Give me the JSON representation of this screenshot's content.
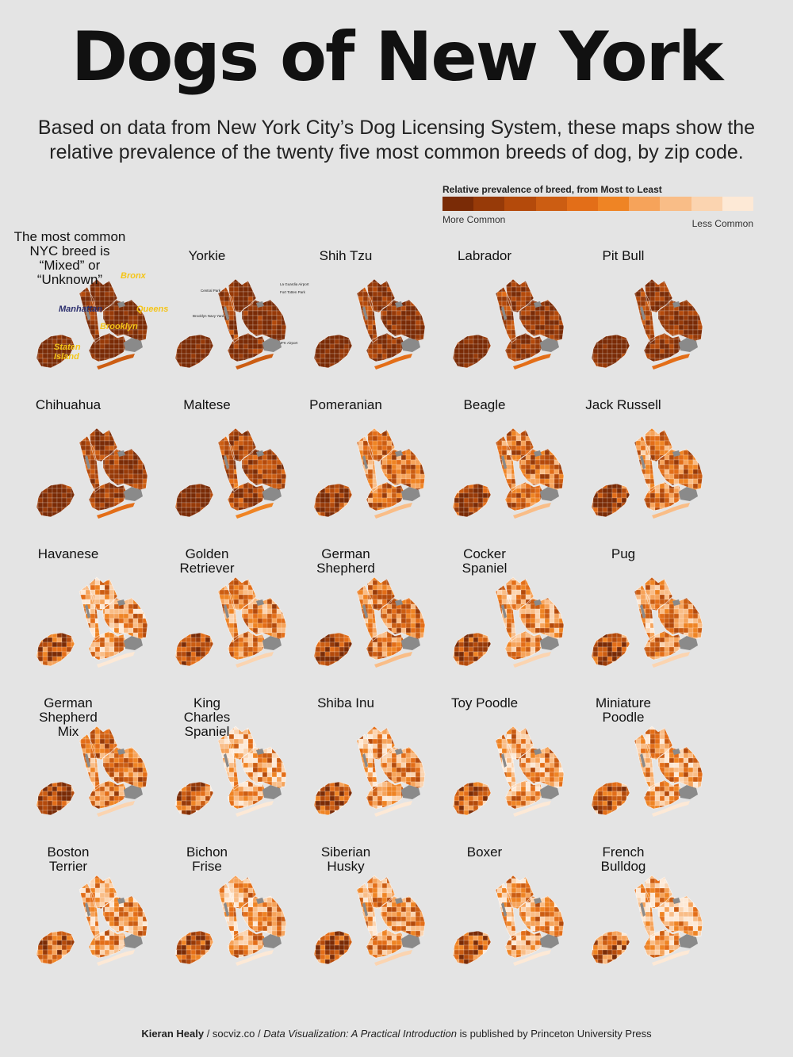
{
  "title": "Dogs of New York",
  "subtitle": "Based on data from New York City’s Dog Licensing System, these maps show the relative prevalence of the twenty five most common breeds of dog, by zip code.",
  "legend": {
    "title": "Relative prevalence of breed, from Most to Least",
    "more": "More Common",
    "less": "Less Common",
    "colors": [
      "#7a2b06",
      "#973a08",
      "#b44a0b",
      "#cc5d12",
      "#e36e18",
      "#ef8424",
      "#f6a35a",
      "#f9bd87",
      "#fbd4b0",
      "#fde9d6"
    ]
  },
  "intro_label": "The most common\nNYC breed is\n“Mixed” or\n“Unknown”",
  "boroughs": [
    {
      "name": "Bronx",
      "color": "#f5c518"
    },
    {
      "name": "Manhattan",
      "color": "#2c2f6e"
    },
    {
      "name": "Queens",
      "color": "#f5c518"
    },
    {
      "name": "Brooklyn",
      "color": "#f5c518"
    },
    {
      "name": "Staten\nIsland",
      "color": "#f5c518"
    }
  ],
  "landmarks": [
    "Central Park",
    "La Guardia Airport",
    "Fort Totten Park",
    "Brooklyn Navy Yard",
    "JFK Airport"
  ],
  "breeds": [
    {
      "name": "Mixed / Unknown",
      "level": 0.02
    },
    {
      "name": "Yorkie",
      "level": 0.06
    },
    {
      "name": "Shih Tzu",
      "level": 0.08
    },
    {
      "name": "Labrador",
      "level": 0.12
    },
    {
      "name": "Pit Bull",
      "level": 0.1
    },
    {
      "name": "Chihuahua",
      "level": 0.14
    },
    {
      "name": "Maltese",
      "level": 0.2
    },
    {
      "name": "Pomeranian",
      "level": 0.42
    },
    {
      "name": "Beagle",
      "level": 0.44
    },
    {
      "name": "Jack Russell",
      "level": 0.46
    },
    {
      "name": "Havanese",
      "level": 0.6
    },
    {
      "name": "Golden\nRetriever",
      "level": 0.5
    },
    {
      "name": "German\nShepherd",
      "level": 0.45
    },
    {
      "name": "Cocker\nSpaniel",
      "level": 0.55
    },
    {
      "name": "Pug",
      "level": 0.55
    },
    {
      "name": "German\nShepherd\nMix",
      "level": 0.48
    },
    {
      "name": "King\nCharles\nSpaniel",
      "level": 0.65
    },
    {
      "name": "Shiba Inu",
      "level": 0.58
    },
    {
      "name": "Toy Poodle",
      "level": 0.6
    },
    {
      "name": "Miniature\nPoodle",
      "level": 0.62
    },
    {
      "name": "Boston\nTerrier",
      "level": 0.62
    },
    {
      "name": "Bichon\nFrise",
      "level": 0.6
    },
    {
      "name": "Siberian\nHusky",
      "level": 0.55
    },
    {
      "name": "Boxer",
      "level": 0.6
    },
    {
      "name": "French\nBulldog",
      "level": 0.7
    }
  ],
  "credit": {
    "author": "Kieran Healy",
    "sep1": " / socviz.co / ",
    "book": "Data Visualization: A Practical Introduction",
    "rest": " is published by Princeton University Press"
  }
}
